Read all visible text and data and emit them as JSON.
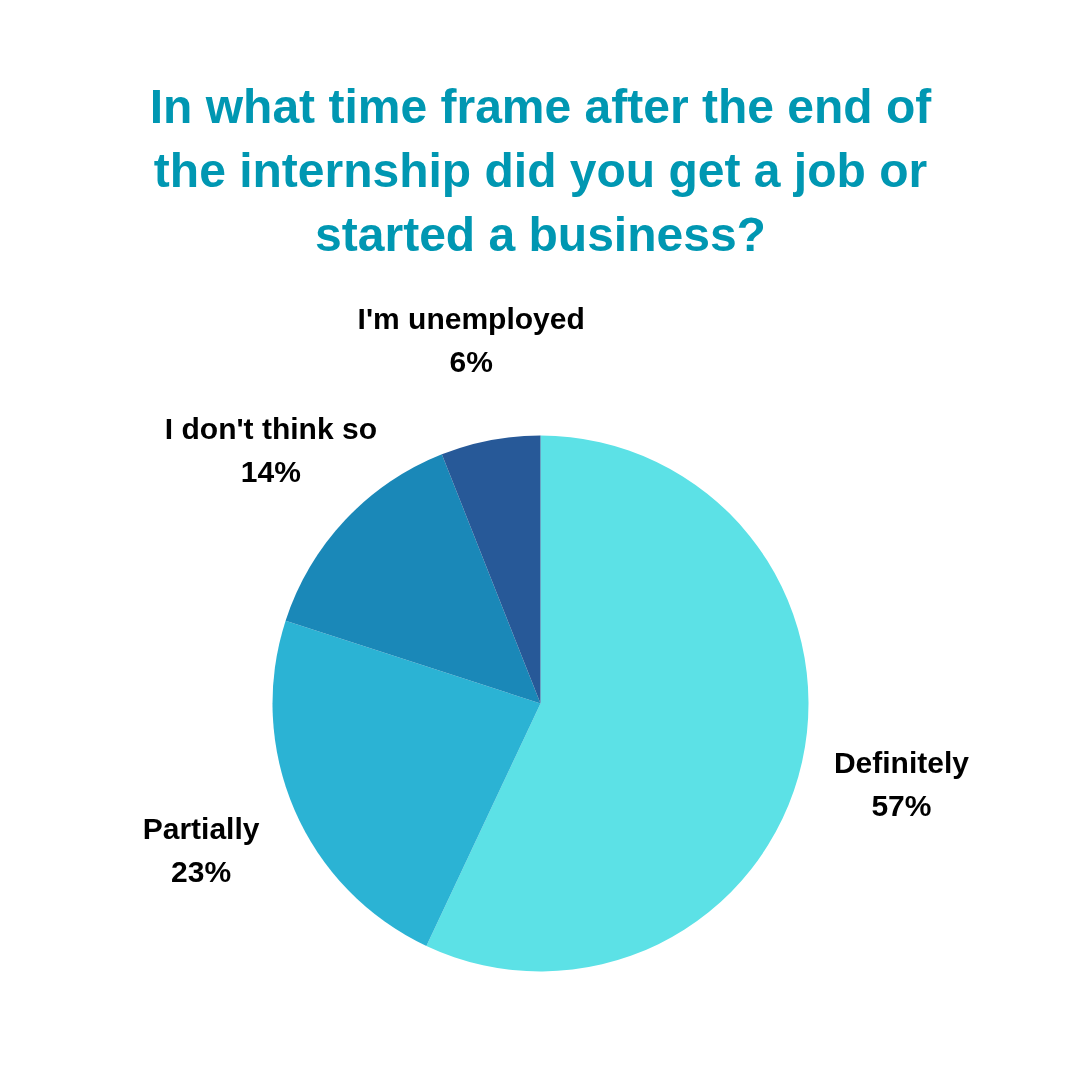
{
  "chart_data": {
    "type": "pie",
    "title": "In what time frame after the end of the internship did you get a job or started a business?",
    "categories": [
      "Definitely",
      "Partially",
      "I don't think so",
      "I'm unemployed"
    ],
    "values": [
      57,
      23,
      14,
      6
    ],
    "value_labels": [
      "57%",
      "23%",
      "14%",
      "6%"
    ],
    "colors": [
      "#5ce1e6",
      "#2bb3d4",
      "#1a88b8",
      "#275998"
    ]
  }
}
